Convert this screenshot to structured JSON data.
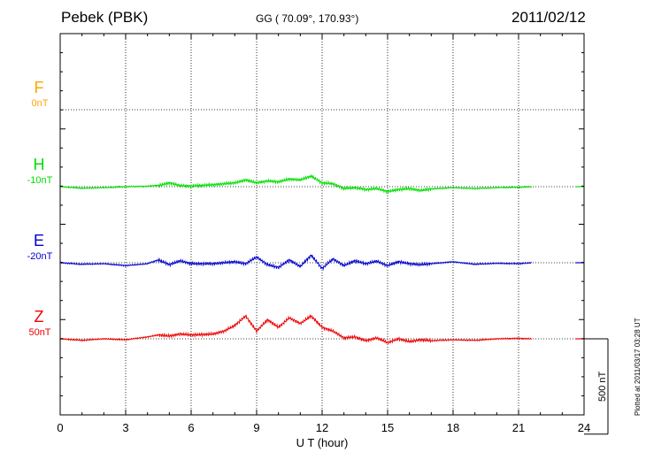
{
  "header": {
    "station": "Pebek (PBK)",
    "coords": "GG ( 70.09°, 170.93°)",
    "date": "2011/02/12"
  },
  "plotted_text": "Plotted at 2011/03/17 03:28 UT",
  "colors": {
    "F": "#ffa500",
    "H": "#00dd00",
    "E": "#0000cc",
    "Z": "#ee0000",
    "grid": "#000000"
  },
  "channels": [
    {
      "id": "F",
      "label": "F",
      "offset": "0nT"
    },
    {
      "id": "H",
      "label": "H",
      "offset": "-10nT"
    },
    {
      "id": "E",
      "label": "E",
      "offset": "-20nT"
    },
    {
      "id": "Z",
      "label": "Z",
      "offset": "50nT"
    }
  ],
  "scale_bar_label": "500 nT",
  "chart_data": {
    "type": "line",
    "xlabel": "U T (hour)",
    "xlim": [
      0,
      24
    ],
    "xticks": [
      "0",
      "3",
      "6",
      "9",
      "12",
      "15",
      "18",
      "21",
      "24"
    ],
    "ylim_nT": [
      -1000,
      1000
    ],
    "scale_bar_nT": 500,
    "data_end_hour": 21.6,
    "series": [
      {
        "name": "H",
        "x": [
          0,
          1,
          2,
          3,
          4,
          4.6,
          5,
          5.5,
          6,
          7,
          7.5,
          8,
          8.5,
          9,
          9.5,
          10,
          10.5,
          11,
          11.5,
          12,
          12.5,
          13,
          13.5,
          14,
          14.5,
          15,
          15.5,
          16,
          16.5,
          17,
          18,
          19,
          20,
          21,
          21.6
        ],
        "values": [
          0,
          -8,
          -5,
          0,
          2,
          8,
          20,
          5,
          3,
          10,
          15,
          20,
          35,
          20,
          30,
          25,
          40,
          35,
          55,
          20,
          15,
          -10,
          -5,
          -15,
          -10,
          -25,
          -15,
          -10,
          -20,
          -12,
          -5,
          -10,
          -5,
          -3,
          0
        ]
      },
      {
        "name": "E",
        "x": [
          0,
          1,
          2,
          3,
          4,
          4.5,
          5,
          5.5,
          6,
          7,
          7.5,
          8,
          8.5,
          9,
          9.5,
          10,
          10.5,
          11,
          11.5,
          12,
          12.5,
          13,
          13.5,
          14,
          14.5,
          15,
          15.5,
          16,
          16.5,
          17,
          18,
          19,
          20,
          21,
          21.6
        ],
        "values": [
          0,
          -8,
          -5,
          -15,
          -5,
          15,
          -10,
          10,
          -5,
          -5,
          0,
          5,
          -5,
          30,
          -10,
          -25,
          15,
          -20,
          40,
          -30,
          20,
          -15,
          10,
          -5,
          8,
          -15,
          5,
          -5,
          -10,
          -5,
          5,
          -8,
          -3,
          -5,
          0
        ]
      },
      {
        "name": "Z",
        "x": [
          0,
          1,
          2,
          3,
          4,
          4.5,
          5,
          5.5,
          6,
          7,
          7.5,
          8,
          8.5,
          9,
          9.5,
          10,
          10.5,
          11,
          11.5,
          12,
          12.5,
          13,
          13.5,
          14,
          14.5,
          15,
          15.5,
          16,
          16.5,
          17,
          18,
          19,
          20,
          21,
          21.6
        ],
        "values": [
          0,
          -8,
          0,
          -5,
          10,
          20,
          15,
          25,
          20,
          25,
          40,
          70,
          120,
          40,
          100,
          60,
          110,
          80,
          120,
          60,
          40,
          5,
          10,
          -10,
          5,
          -20,
          0,
          -15,
          -5,
          -10,
          -5,
          -8,
          0,
          2,
          0
        ]
      }
    ]
  }
}
